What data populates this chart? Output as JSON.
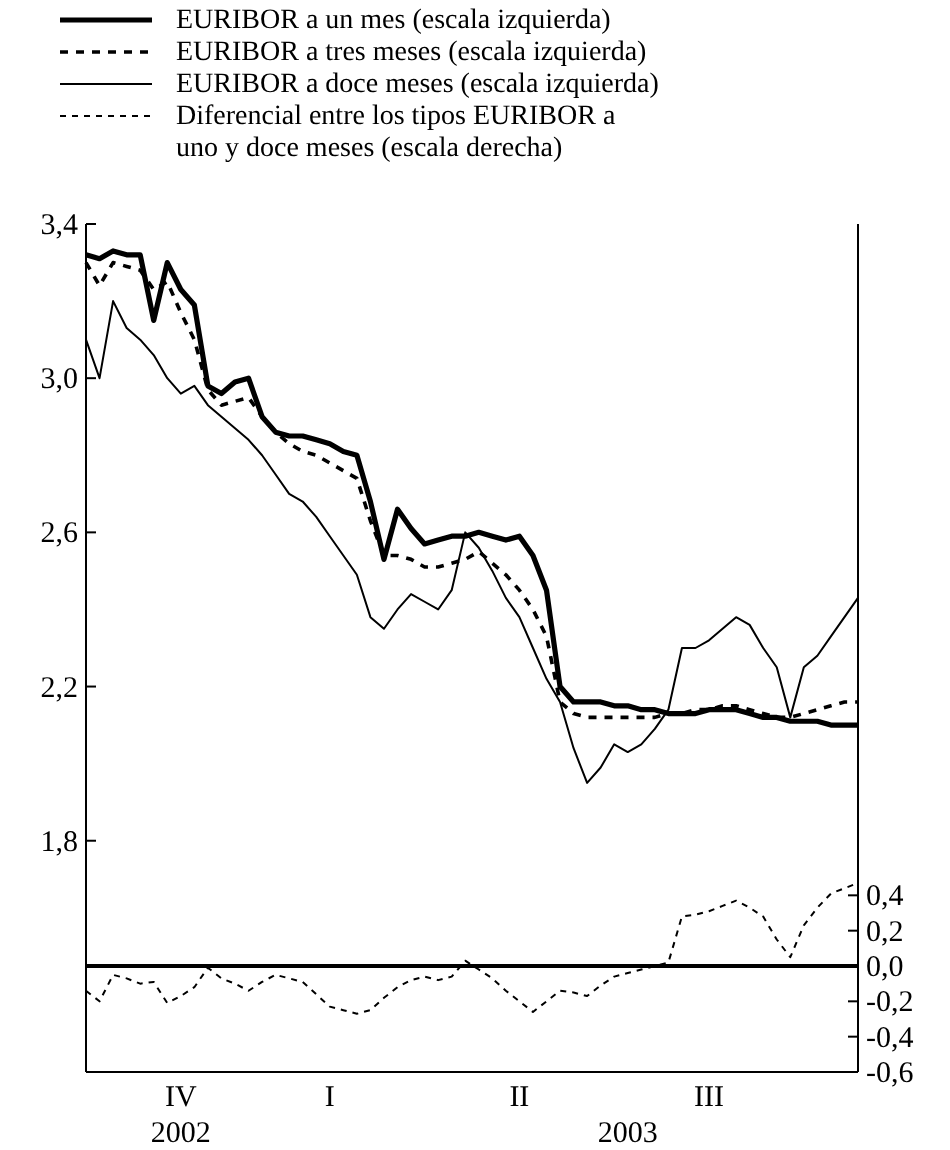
{
  "chart_data": {
    "type": "line",
    "legend": "top",
    "ylim": [
      1.2,
      3.4
    ],
    "yticks": [
      {
        "value": 1.8,
        "label": "1,8"
      },
      {
        "value": 2.2,
        "label": "2,2"
      },
      {
        "value": 2.6,
        "label": "2,6"
      },
      {
        "value": 3.0,
        "label": "3,0"
      },
      {
        "value": 3.4,
        "label": "3,4"
      }
    ],
    "y2lim": [
      -0.6,
      4.2
    ],
    "y2ticks": [
      {
        "value": -0.6,
        "label": "-0,6"
      },
      {
        "value": -0.4,
        "label": "-0,4"
      },
      {
        "value": -0.2,
        "label": "-0,2"
      },
      {
        "value": 0,
        "label": "0,0"
      },
      {
        "value": 0.2,
        "label": "0,2"
      },
      {
        "value": 0.4,
        "label": "0,4"
      }
    ],
    "categories": [
      null,
      null,
      null,
      null,
      null,
      null,
      null,
      "IV\n2002",
      null,
      null,
      null,
      null,
      null,
      null,
      null,
      null,
      null,
      null,
      "I",
      null,
      null,
      null,
      null,
      null,
      null,
      null,
      null,
      null,
      null,
      null,
      null,
      null,
      "II",
      null,
      null,
      null,
      null,
      null,
      null,
      null,
      "\n2003",
      null,
      null,
      null,
      null,
      null,
      "III",
      null,
      null,
      null,
      null,
      null,
      null,
      null,
      null,
      null,
      null,
      null
    ],
    "ref_lines": [
      {
        "axis": "y2",
        "value": 0,
        "line_style": "solid",
        "color": "#000000"
      }
    ],
    "series": [
      {
        "name": "EURIBOR a un mes (escala izquierda)",
        "color": "#000000",
        "line_style": "solid",
        "values": [
          3.32,
          3.31,
          3.33,
          3.32,
          3.32,
          3.15,
          3.3,
          3.23,
          3.19,
          2.98,
          2.96,
          2.99,
          3.0,
          2.9,
          2.86,
          2.85,
          2.85,
          2.84,
          2.83,
          2.81,
          2.8,
          2.68,
          2.53,
          2.66,
          2.61,
          2.57,
          2.58,
          2.59,
          2.59,
          2.6,
          2.59,
          2.58,
          2.59,
          2.54,
          2.45,
          2.2,
          2.16,
          2.16,
          2.16,
          2.15,
          2.15,
          2.14,
          2.14,
          2.13,
          2.13,
          2.13,
          2.14,
          2.14,
          2.14,
          2.13,
          2.12,
          2.12,
          2.11,
          2.11,
          2.11,
          2.1,
          2.1,
          2.1
        ]
      },
      {
        "name": "EURIBOR a tres meses (escala izquierda)",
        "color": "#000000",
        "line_style": "dashed",
        "values": [
          3.3,
          3.24,
          3.3,
          3.29,
          3.28,
          3.23,
          3.25,
          3.17,
          3.1,
          2.97,
          2.93,
          2.94,
          2.95,
          2.9,
          2.86,
          2.83,
          2.81,
          2.8,
          2.78,
          2.76,
          2.74,
          2.63,
          2.54,
          2.54,
          2.53,
          2.51,
          2.51,
          2.52,
          2.53,
          2.55,
          2.52,
          2.49,
          2.45,
          2.4,
          2.33,
          2.16,
          2.13,
          2.12,
          2.12,
          2.12,
          2.12,
          2.12,
          2.12,
          2.13,
          2.13,
          2.14,
          2.14,
          2.15,
          2.15,
          2.14,
          2.13,
          2.12,
          2.12,
          2.13,
          2.14,
          2.15,
          2.16,
          2.16
        ]
      },
      {
        "name": "EURIBOR a doce meses (escala izquierda)",
        "color": "#000000",
        "line_style": "solid",
        "values": [
          3.1,
          3.0,
          3.2,
          3.13,
          3.1,
          3.06,
          3.0,
          2.96,
          2.98,
          2.93,
          2.9,
          2.87,
          2.84,
          2.8,
          2.75,
          2.7,
          2.68,
          2.64,
          2.59,
          2.54,
          2.49,
          2.38,
          2.35,
          2.4,
          2.44,
          2.42,
          2.4,
          2.45,
          2.6,
          2.56,
          2.5,
          2.43,
          2.38,
          2.3,
          2.22,
          2.16,
          2.04,
          1.95,
          1.99,
          2.05,
          2.03,
          2.05,
          2.09,
          2.14,
          2.3,
          2.3,
          2.32,
          2.35,
          2.38,
          2.36,
          2.3,
          2.25,
          2.12,
          2.25,
          2.28,
          2.33,
          2.38,
          2.43
        ]
      },
      {
        "name": "Diferencial entre los tipos EURIBOR a uno y doce meses (escala derecha)",
        "color": "#000000",
        "line_style": "dotted",
        "axis": "y2",
        "values": [
          -0.14,
          -0.2,
          -0.05,
          -0.07,
          -0.1,
          -0.09,
          -0.21,
          -0.17,
          -0.12,
          -0.01,
          -0.07,
          -0.1,
          -0.14,
          -0.09,
          -0.05,
          -0.07,
          -0.09,
          -0.16,
          -0.23,
          -0.25,
          -0.27,
          -0.25,
          -0.18,
          -0.12,
          -0.08,
          -0.06,
          -0.08,
          -0.06,
          0.03,
          -0.02,
          -0.07,
          -0.14,
          -0.2,
          -0.26,
          -0.2,
          -0.14,
          -0.15,
          -0.17,
          -0.11,
          -0.06,
          -0.04,
          -0.02,
          0.0,
          0.02,
          0.28,
          0.29,
          0.31,
          0.34,
          0.37,
          0.33,
          0.28,
          0.15,
          0.05,
          0.23,
          0.33,
          0.41,
          0.44,
          0.47
        ]
      }
    ]
  }
}
